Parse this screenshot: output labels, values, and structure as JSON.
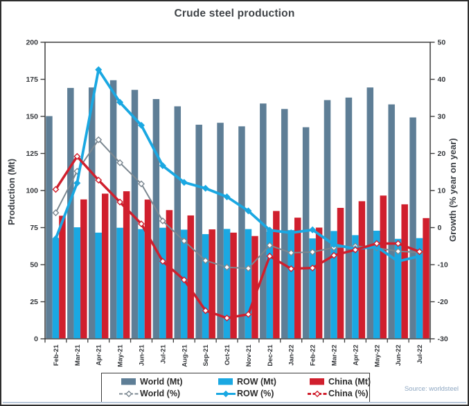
{
  "title": "Crude steel production",
  "source": "Source: worldsteel",
  "y_left": {
    "label": "Production (Mt)",
    "min": 0,
    "max": 200,
    "step": 25
  },
  "y_right": {
    "label": "Growth (% year on year)",
    "min": -30,
    "max": 50,
    "step": 10
  },
  "colors": {
    "world": "#5e7e96",
    "row": "#1aa8e2",
    "china": "#d01f2d",
    "world_line": "#7b8790",
    "axis": "#3c3c3c",
    "tick_text": "#33363a"
  },
  "chart_data": {
    "type": "bar+line combo",
    "categories": [
      "Feb-21",
      "Mar-21",
      "Apr-21",
      "May-21",
      "Jun-21",
      "Jul-21",
      "Aug-21",
      "Sep-21",
      "Oct-21",
      "Nov-21",
      "Dec-21",
      "Jan-22",
      "Feb-22",
      "Mar-22",
      "Apr-22",
      "May-22",
      "Jun-22",
      "Jul-22"
    ],
    "left_axis_range": [
      0,
      200
    ],
    "right_axis_range": [
      -30,
      50
    ],
    "grid": "off",
    "legend_position": "bottom-center",
    "series": [
      {
        "name": "World (Mt)",
        "type": "bar",
        "axis": "left",
        "color": "#5e7e96",
        "values": [
          150.2,
          169.2,
          169.5,
          174.4,
          167.9,
          161.7,
          156.8,
          144.4,
          145.7,
          143.3,
          158.7,
          155.0,
          142.7,
          161.0,
          162.7,
          169.5,
          158.1,
          149.3
        ]
      },
      {
        "name": "ROW (Mt)",
        "type": "bar",
        "axis": "left",
        "color": "#1aa8e2",
        "values": [
          67.2,
          75.2,
          71.6,
          74.9,
          74.0,
          74.9,
          73.6,
          70.6,
          74.1,
          74.0,
          72.5,
          73.3,
          67.7,
          72.7,
          69.9,
          72.9,
          67.4,
          67.9
        ]
      },
      {
        "name": "China (Mt)",
        "type": "bar",
        "axis": "left",
        "color": "#d01f2d",
        "values": [
          83.0,
          94.0,
          97.9,
          99.5,
          93.9,
          86.8,
          83.2,
          73.8,
          71.6,
          69.3,
          86.2,
          81.7,
          75.0,
          88.3,
          92.8,
          96.6,
          90.7,
          81.4
        ]
      },
      {
        "name": "World (%)",
        "type": "line",
        "axis": "right",
        "color": "#7b8790",
        "line_width": 2,
        "marker": "open",
        "values": [
          4.0,
          15.2,
          23.7,
          17.5,
          11.8,
          1.8,
          -3.6,
          -8.9,
          -10.7,
          -11.0,
          -4.8,
          -6.8,
          -6.6,
          -5.4,
          -5.0,
          -5.5,
          -6.4,
          -6.7
        ]
      },
      {
        "name": "ROW (%)",
        "type": "line",
        "axis": "right",
        "color": "#1aa8e2",
        "line_width": 3.8,
        "marker": "solid",
        "values": [
          -3.0,
          12.0,
          42.6,
          33.8,
          27.6,
          16.7,
          12.2,
          10.6,
          8.3,
          4.5,
          -0.7,
          -1.4,
          -0.6,
          -4.6,
          -5.7,
          -5.2,
          -9.1,
          -7.7
        ]
      },
      {
        "name": "China (%)",
        "type": "line",
        "axis": "right",
        "color": "#d01f2d",
        "line_width": 3.5,
        "marker": "open",
        "values": [
          10.3,
          19.2,
          12.8,
          6.9,
          1.0,
          -9.1,
          -14.1,
          -22.4,
          -24.4,
          -23.4,
          -7.7,
          -11.1,
          -10.9,
          -7.5,
          -6.0,
          -4.3,
          -4.3,
          -6.5
        ]
      }
    ]
  }
}
